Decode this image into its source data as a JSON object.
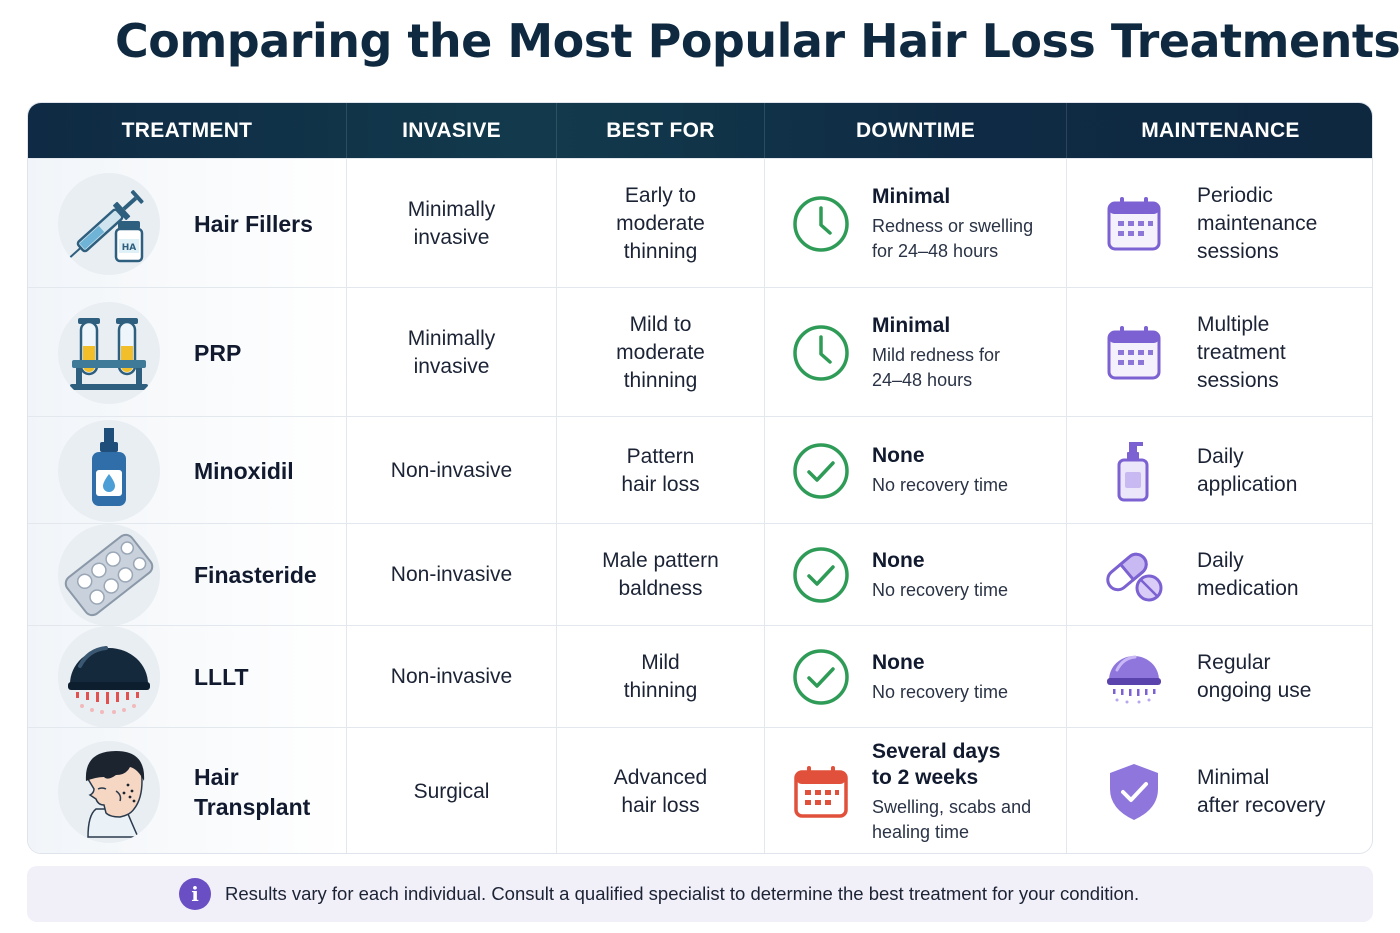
{
  "title": "Comparing the Most Popular Hair Loss Treatments",
  "headers": [
    "TREATMENT",
    "INVASIVE",
    "BEST FOR",
    "DOWNTIME",
    "MAINTENANCE"
  ],
  "rows": [
    {
      "icon": "syringe-vial-icon",
      "icon_label": "HA",
      "treatment": [
        "Hair Fillers"
      ],
      "invasive": [
        "Minimally",
        "invasive"
      ],
      "best_for": [
        "Early to",
        "moderate",
        "thinning"
      ],
      "downtime_icon": "clock-icon",
      "downtime_title": [
        "Minimal"
      ],
      "downtime_detail": [
        "Redness or swelling",
        "for 24–48 hours"
      ],
      "maintenance_icon": "calendar-icon",
      "maintenance": [
        "Periodic",
        "maintenance",
        "sessions"
      ]
    },
    {
      "icon": "test-tubes-icon",
      "treatment": [
        "PRP"
      ],
      "invasive": [
        "Minimally",
        "invasive"
      ],
      "best_for": [
        "Mild to",
        "moderate",
        "thinning"
      ],
      "downtime_icon": "clock-icon",
      "downtime_title": [
        "Minimal"
      ],
      "downtime_detail": [
        "Mild redness for",
        "24–48 hours"
      ],
      "maintenance_icon": "calendar-icon",
      "maintenance": [
        "Multiple",
        "treatment",
        "sessions"
      ]
    },
    {
      "icon": "dropper-bottle-icon",
      "treatment": [
        "Minoxidil"
      ],
      "invasive": [
        "Non-invasive"
      ],
      "best_for": [
        "Pattern",
        "hair loss"
      ],
      "downtime_icon": "check-circle-icon",
      "downtime_title": [
        "None"
      ],
      "downtime_detail": [
        "No recovery time"
      ],
      "maintenance_icon": "pump-bottle-icon",
      "maintenance": [
        "Daily",
        "application"
      ]
    },
    {
      "icon": "pill-blister-icon",
      "treatment": [
        "Finasteride"
      ],
      "invasive": [
        "Non-invasive"
      ],
      "best_for": [
        "Male pattern",
        "baldness"
      ],
      "downtime_icon": "check-circle-icon",
      "downtime_title": [
        "None"
      ],
      "downtime_detail": [
        "No recovery time"
      ],
      "maintenance_icon": "capsule-pill-icon",
      "maintenance": [
        "Daily",
        "medication"
      ]
    },
    {
      "icon": "laser-cap-icon",
      "treatment": [
        "LLLT"
      ],
      "invasive": [
        "Non-invasive"
      ],
      "best_for": [
        "Mild",
        "thinning"
      ],
      "downtime_icon": "check-circle-icon",
      "downtime_title": [
        "None"
      ],
      "downtime_detail": [
        "No recovery time"
      ],
      "maintenance_icon": "laser-device-icon",
      "maintenance": [
        "Regular",
        "ongoing use"
      ]
    },
    {
      "icon": "head-profile-icon",
      "treatment": [
        "Hair",
        "Transplant"
      ],
      "invasive": [
        "Surgical"
      ],
      "best_for": [
        "Advanced",
        "hair loss"
      ],
      "downtime_icon": "calendar-red-icon",
      "downtime_title": [
        "Several days",
        "to 2 weeks"
      ],
      "downtime_detail": [
        "Swelling, scabs and",
        "healing time"
      ],
      "maintenance_icon": "shield-check-icon",
      "maintenance": [
        "Minimal",
        "after recovery"
      ]
    }
  ],
  "note": "Results vary for each individual. Consult a qualified specialist to determine the best treatment for your condition.",
  "colors": {
    "header_bg": "#0f2a44",
    "title": "#0f2a40",
    "green": "#2e9b57",
    "purple": "#7b61d1",
    "red": "#e0503a"
  }
}
